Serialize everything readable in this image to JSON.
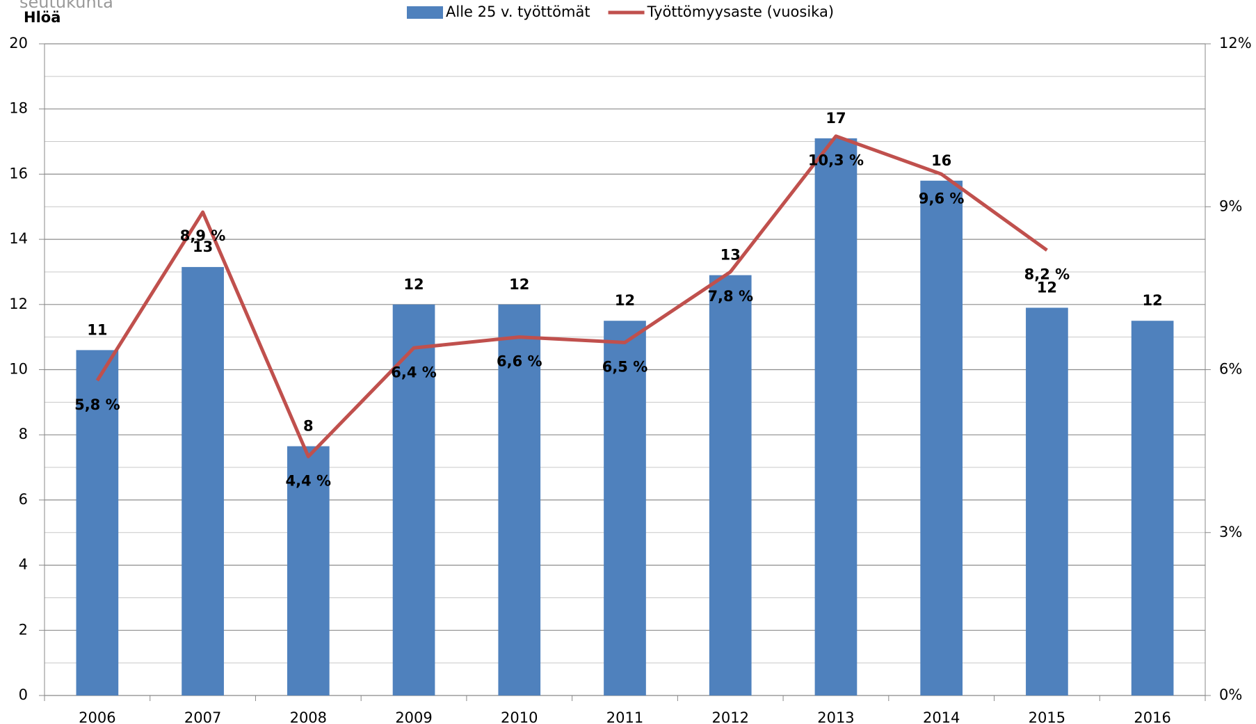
{
  "chart_data": {
    "type": "bar-line",
    "title_fragment": "seutukunta",
    "y_label": "Hlöä",
    "categories": [
      "2006",
      "2007",
      "2008",
      "2009",
      "2010",
      "2011",
      "2012",
      "2013",
      "2014",
      "2015",
      "2016"
    ],
    "series": [
      {
        "name": "Alle 25 v. työttömät",
        "type": "bar",
        "color": "#4f81bd",
        "values": [
          10.6,
          13.15,
          7.65,
          12,
          12,
          11.5,
          12.9,
          17.1,
          15.8,
          11.9,
          11.5
        ],
        "value_labels": [
          "11",
          "13",
          "8",
          "12",
          "12",
          "12",
          "13",
          "17",
          "16",
          "12",
          "12"
        ]
      },
      {
        "name": "Työttömyysaste (vuosika)",
        "type": "line",
        "color": "#c0504d",
        "axis": "y2",
        "values": [
          5.8,
          8.9,
          4.4,
          6.4,
          6.6,
          6.5,
          7.8,
          10.3,
          9.6,
          8.2,
          null
        ],
        "value_labels": [
          "5,8 %",
          "8,9 %",
          "4,4 %",
          "6,4 %",
          "6,6 %",
          "6,5 %",
          "7,8 %",
          "10,3 %",
          "9,6 %",
          "8,2 %",
          null
        ]
      }
    ],
    "ylim": [
      0,
      20
    ],
    "yticks": [
      0,
      2,
      4,
      6,
      8,
      10,
      12,
      14,
      16,
      18,
      20
    ],
    "y2lim": [
      0,
      12
    ],
    "y2ticks": [
      {
        "value": 0,
        "label": "0%"
      },
      {
        "value": 3,
        "label": "3%"
      },
      {
        "value": 6,
        "label": "6%"
      },
      {
        "value": 9,
        "label": "9%"
      },
      {
        "value": 12,
        "label": "12%"
      }
    ],
    "grid": true,
    "minor_grid": true,
    "legend": "top"
  }
}
